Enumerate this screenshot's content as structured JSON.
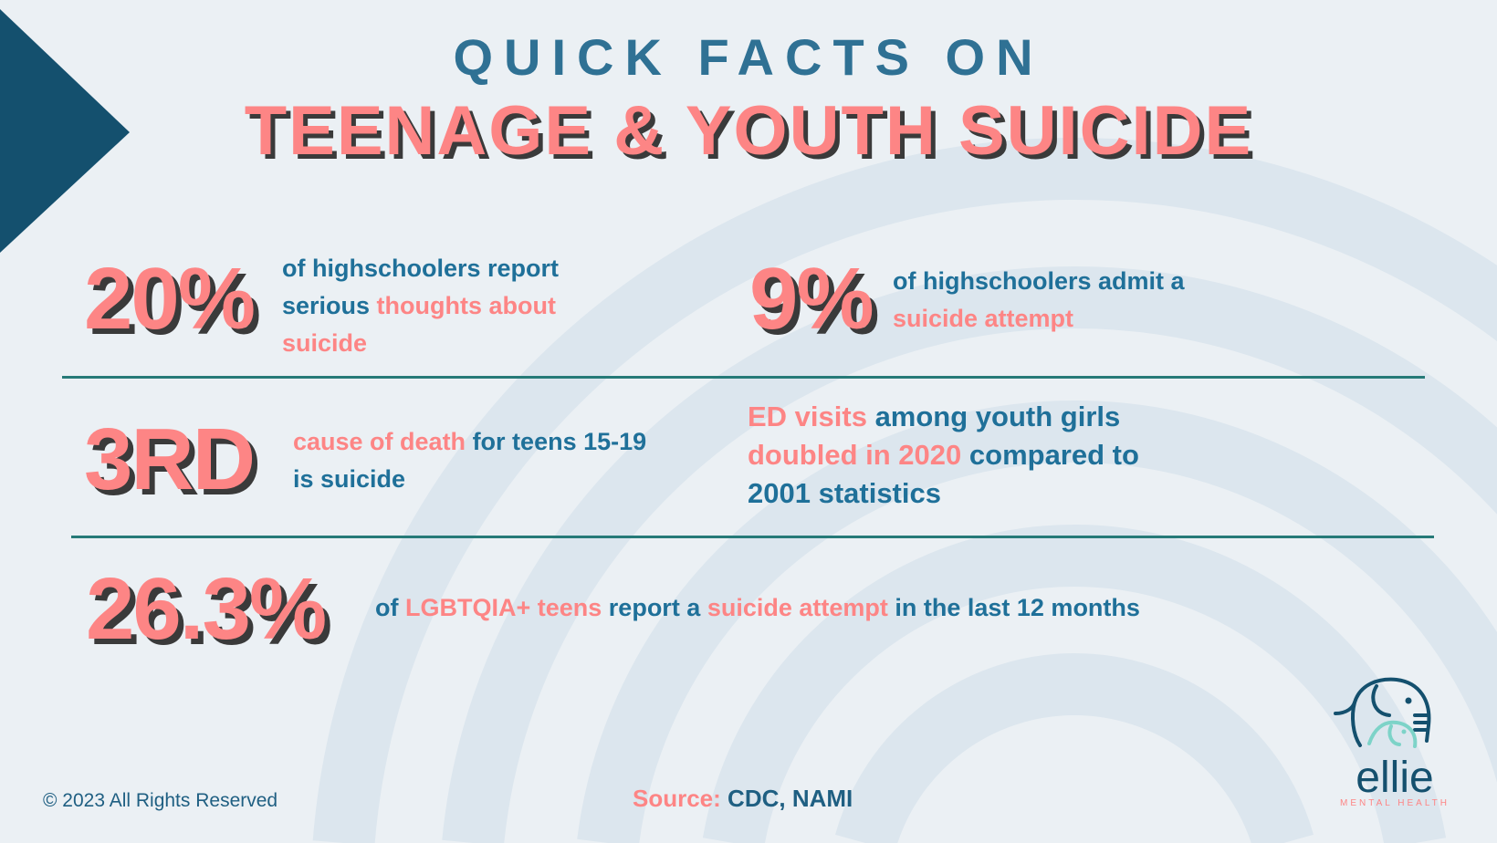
{
  "title": {
    "line1": "QUICK FACTS ON",
    "line2": "TEENAGE & YOUTH SUICIDE"
  },
  "facts": [
    {
      "stat": "20%",
      "parts": [
        {
          "t": "of highschoolers report serious ",
          "c": "blue"
        },
        {
          "t": "thoughts about suicide",
          "c": "pink"
        }
      ]
    },
    {
      "stat": "9%",
      "parts": [
        {
          "t": "of highschoolers admit a ",
          "c": "blue"
        },
        {
          "t": "suicide attempt",
          "c": "pink"
        }
      ]
    },
    {
      "stat": "3RD",
      "parts": [
        {
          "t": "cause of death",
          "c": "pink"
        },
        {
          "t": " for teens 15-19 is suicide",
          "c": "blue"
        }
      ]
    },
    {
      "stat": "",
      "parts": [
        {
          "t": "ED visits",
          "c": "pink"
        },
        {
          "t": " among youth girls ",
          "c": "blue"
        },
        {
          "t": "doubled in 2020",
          "c": "pink"
        },
        {
          "t": " compared to 2001 statistics",
          "c": "blue"
        }
      ]
    },
    {
      "stat": "26.3%",
      "parts": [
        {
          "t": "of ",
          "c": "blue"
        },
        {
          "t": "LGBTQIA+ teens",
          "c": "pink"
        },
        {
          "t": " report a ",
          "c": "blue"
        },
        {
          "t": "suicide attempt",
          "c": "pink"
        },
        {
          "t": " in the last 12 months",
          "c": "blue"
        }
      ]
    }
  ],
  "footer": {
    "copyright": "© 2023 All Rights Reserved",
    "source_label": "Source:",
    "source_value": " CDC, NAMI"
  },
  "logo": {
    "name": "ellie",
    "tagline": "MENTAL HEALTH"
  },
  "colors": {
    "pink": "#fd8585",
    "blue": "#1f7099",
    "navy": "#14506e",
    "teal": "#267a78",
    "mint": "#7dd3c8"
  }
}
